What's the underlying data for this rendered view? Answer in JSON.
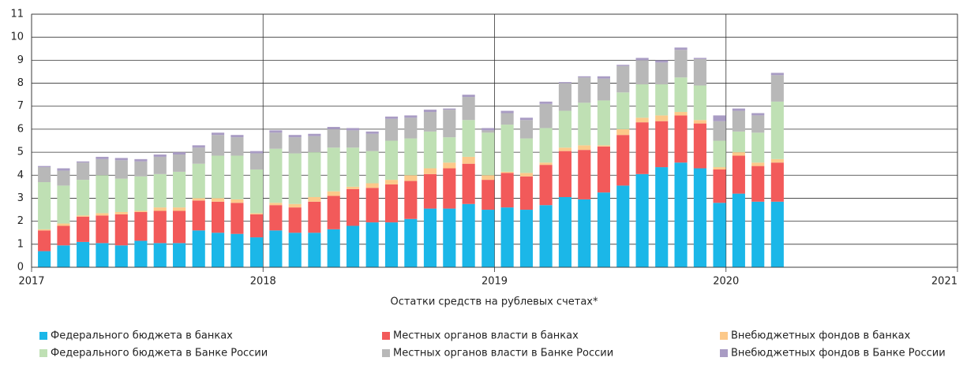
{
  "chart_data": {
    "type": "stacked-bar",
    "xlabel": "Остатки средств на рублевых счетах*",
    "x": [
      2017.055,
      2017.138,
      2017.222,
      2017.305,
      2017.388,
      2017.472,
      2017.555,
      2017.638,
      2017.722,
      2017.805,
      2017.888,
      2017.972,
      2018.055,
      2018.138,
      2018.222,
      2018.305,
      2018.388,
      2018.472,
      2018.555,
      2018.638,
      2018.722,
      2018.805,
      2018.888,
      2018.972,
      2019.055,
      2019.138,
      2019.222,
      2019.305,
      2019.388,
      2019.472,
      2019.555,
      2019.638,
      2019.722,
      2019.805,
      2019.888,
      2019.972,
      2020.055,
      2020.138,
      2020.222
    ],
    "xlim": [
      2017,
      2021
    ],
    "xticks": [
      2017,
      2018,
      2019,
      2020,
      2021
    ],
    "ylim": [
      0,
      11
    ],
    "yticks": [
      0,
      1,
      2,
      3,
      4,
      5,
      6,
      7,
      8,
      9,
      10,
      11
    ],
    "grid": true,
    "legend": "bottom",
    "series": [
      {
        "name": "Федерального бюджета в банках",
        "color": "#1bb7e8",
        "values": [
          0.7,
          0.95,
          1.1,
          1.05,
          0.95,
          1.15,
          1.05,
          1.05,
          1.6,
          1.5,
          1.45,
          1.3,
          1.6,
          1.5,
          1.5,
          1.65,
          1.8,
          1.95,
          1.95,
          2.1,
          2.55,
          2.55,
          2.75,
          2.5,
          2.6,
          2.5,
          2.7,
          3.05,
          2.95,
          3.25,
          3.55,
          4.05,
          4.35,
          4.55,
          4.3,
          2.8,
          3.2,
          2.85,
          2.85
        ]
      },
      {
        "name": "Местных органов власти в банках",
        "color": "#f25a5a",
        "values": [
          0.9,
          0.85,
          1.1,
          1.2,
          1.35,
          1.25,
          1.4,
          1.4,
          1.3,
          1.35,
          1.35,
          1.0,
          1.1,
          1.1,
          1.35,
          1.45,
          1.6,
          1.5,
          1.65,
          1.65,
          1.5,
          1.75,
          1.75,
          1.3,
          1.5,
          1.45,
          1.75,
          2.0,
          2.15,
          2.0,
          2.2,
          2.25,
          2.0,
          2.05,
          1.95,
          1.45,
          1.65,
          1.55,
          1.7
        ]
      },
      {
        "name": "Внебюджетных фондов в банках",
        "color": "#fcc98a",
        "values": [
          0.05,
          0.1,
          0.05,
          0.1,
          0.1,
          0.05,
          0.15,
          0.15,
          0.1,
          0.15,
          0.15,
          0.05,
          0.1,
          0.15,
          0.2,
          0.2,
          0.1,
          0.2,
          0.2,
          0.25,
          0.25,
          0.25,
          0.3,
          0.2,
          0.05,
          0.15,
          0.1,
          0.15,
          0.2,
          0.05,
          0.25,
          0.2,
          0.25,
          0.15,
          0.15,
          0.1,
          0.15,
          0.15,
          0.15
        ]
      },
      {
        "name": "Федерального бюджета в Банке России",
        "color": "#bfe0b4",
        "values": [
          2.05,
          1.65,
          1.55,
          1.65,
          1.45,
          1.5,
          1.45,
          1.55,
          1.5,
          1.85,
          1.9,
          1.9,
          2.35,
          2.2,
          1.95,
          1.9,
          1.7,
          1.4,
          1.7,
          1.6,
          1.6,
          1.1,
          1.6,
          1.85,
          2.05,
          1.5,
          1.5,
          1.6,
          1.85,
          1.95,
          1.6,
          1.45,
          1.35,
          1.5,
          1.5,
          1.15,
          0.9,
          1.3,
          2.5
        ]
      },
      {
        "name": "Местных органов власти в Банке России",
        "color": "#b8b8b8",
        "values": [
          0.65,
          0.65,
          0.75,
          0.7,
          0.8,
          0.65,
          0.75,
          0.75,
          0.7,
          0.9,
          0.8,
          0.7,
          0.7,
          0.7,
          0.7,
          0.8,
          0.75,
          0.75,
          0.95,
          0.9,
          0.85,
          1.2,
          1.0,
          0.1,
          0.5,
          0.8,
          1.05,
          1.2,
          1.1,
          0.95,
          1.15,
          1.05,
          0.95,
          1.2,
          1.15,
          0.85,
          0.9,
          0.75,
          1.15
        ]
      },
      {
        "name": "Внебюджетных фондов в Банке России",
        "color": "#a99cc4",
        "values": [
          0.05,
          0.1,
          0.05,
          0.1,
          0.1,
          0.1,
          0.1,
          0.1,
          0.1,
          0.1,
          0.1,
          0.1,
          0.1,
          0.1,
          0.1,
          0.1,
          0.1,
          0.1,
          0.1,
          0.1,
          0.1,
          0.05,
          0.1,
          0.1,
          0.1,
          0.1,
          0.1,
          0.05,
          0.05,
          0.1,
          0.05,
          0.1,
          0.1,
          0.1,
          0.05,
          0.25,
          0.1,
          0.1,
          0.1
        ]
      }
    ]
  }
}
